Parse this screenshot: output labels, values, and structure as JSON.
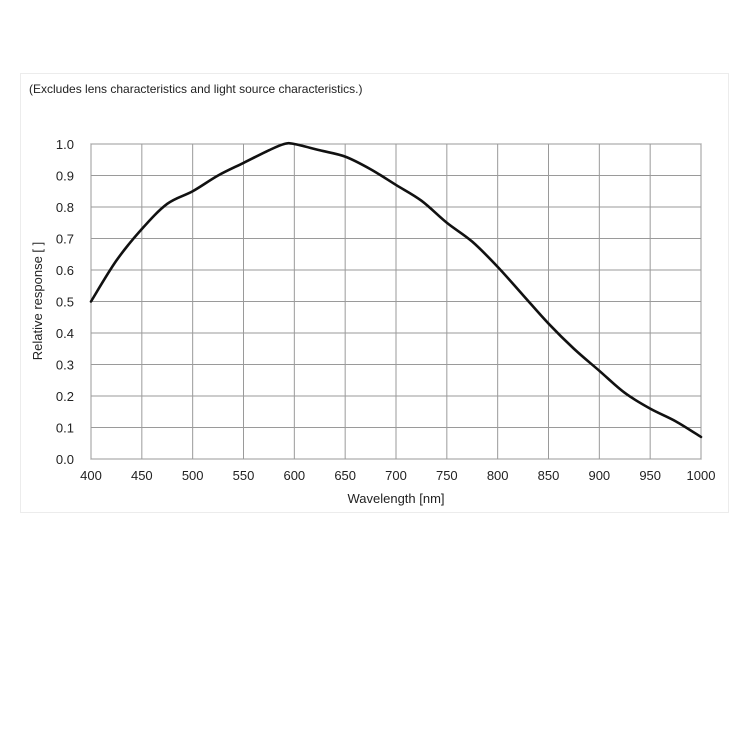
{
  "chart_data": {
    "type": "line",
    "title": "",
    "note": "(Excludes lens characteristics and light source characteristics.)",
    "xlabel": "Wavelength [nm]",
    "ylabel": "Relative response [ ]",
    "xlim": [
      400,
      1000
    ],
    "ylim": [
      0.0,
      1.0
    ],
    "x_ticks": [
      "400",
      "450",
      "500",
      "550",
      "600",
      "650",
      "700",
      "750",
      "800",
      "850",
      "900",
      "950",
      "1000"
    ],
    "y_ticks": [
      "0.0",
      "0.1",
      "0.2",
      "0.3",
      "0.4",
      "0.5",
      "0.6",
      "0.7",
      "0.8",
      "0.9",
      "1.0"
    ],
    "x_tick_values": [
      400,
      450,
      500,
      550,
      600,
      650,
      700,
      750,
      800,
      850,
      900,
      950,
      1000
    ],
    "y_tick_values": [
      0.0,
      0.1,
      0.2,
      0.3,
      0.4,
      0.5,
      0.6,
      0.7,
      0.8,
      0.9,
      1.0
    ],
    "grid": true,
    "legend": "none",
    "series": [
      {
        "name": "Relative response",
        "color": "#111111",
        "x": [
          400,
          425,
          450,
          475,
          500,
          525,
          550,
          575,
          590,
          600,
          625,
          650,
          675,
          700,
          725,
          750,
          775,
          800,
          825,
          850,
          875,
          900,
          925,
          950,
          975,
          1000
        ],
        "y": [
          0.5,
          0.63,
          0.73,
          0.81,
          0.85,
          0.9,
          0.94,
          0.98,
          1.0,
          1.0,
          0.98,
          0.96,
          0.92,
          0.87,
          0.82,
          0.75,
          0.69,
          0.61,
          0.52,
          0.43,
          0.35,
          0.28,
          0.21,
          0.16,
          0.12,
          0.07
        ]
      }
    ]
  }
}
